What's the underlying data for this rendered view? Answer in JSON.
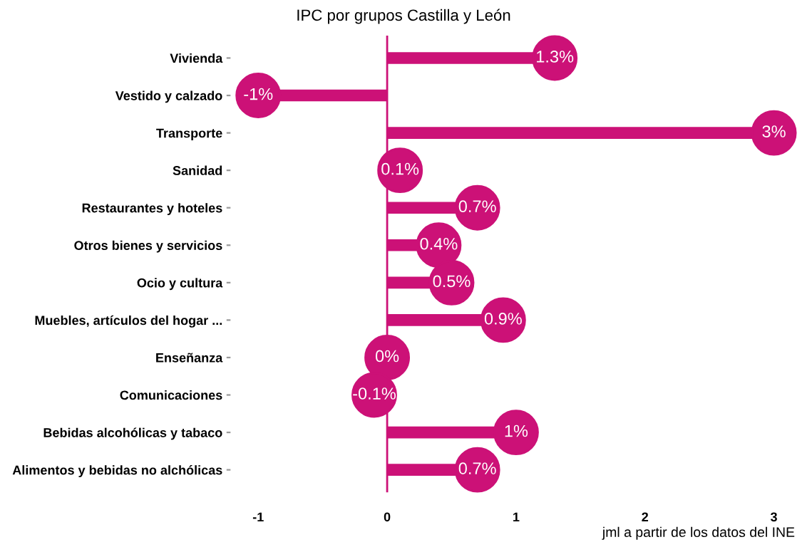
{
  "chart_data": {
    "type": "lollipop",
    "orientation": "horizontal",
    "title": "IPC por grupos Castilla y León",
    "categories": [
      "Vivienda",
      "Vestido y calzado",
      "Transporte",
      "Sanidad",
      "Restaurantes y hoteles",
      "Otros bienes y servicios",
      "Ocio y cultura",
      "Muebles, artículos del hogar ...",
      "Enseñanza",
      "Comunicaciones",
      "Bebidas alcohólicas y tabaco",
      "Alimentos y bebidas no alchólicas"
    ],
    "values": [
      1.3,
      -1,
      3,
      0.1,
      0.7,
      0.4,
      0.5,
      0.9,
      0,
      -0.1,
      1,
      0.7
    ],
    "value_labels": [
      "1.3%",
      "-1%",
      "3%",
      "0.1%",
      "0.7%",
      "0.4%",
      "0.5%",
      "0.9%",
      "0%",
      "-0.1%",
      "1%",
      "0.7%"
    ],
    "color": "#cc1177",
    "marker": "circle",
    "grid": false,
    "xlim": [
      -1,
      3
    ],
    "xticks": [
      -1,
      0,
      1,
      2,
      3
    ],
    "ref_lines": [
      {
        "axis": "x",
        "value": 0,
        "color": "#cc1177"
      }
    ],
    "annotations": [
      "jml a partir de los datos del INE"
    ]
  }
}
